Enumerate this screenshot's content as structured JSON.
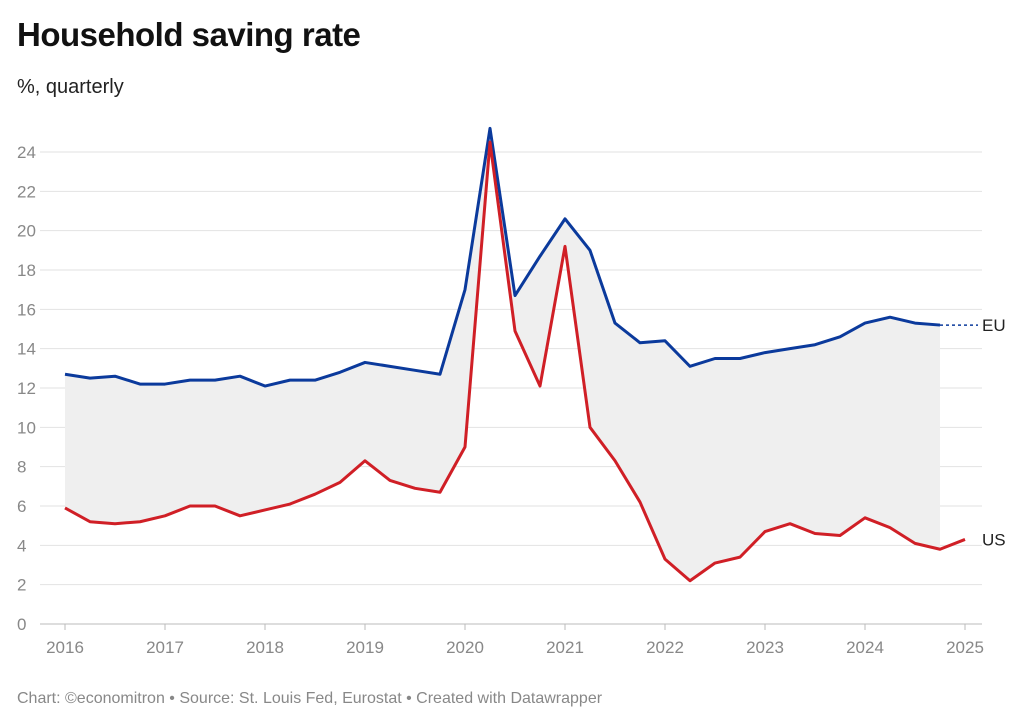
{
  "chart_data": {
    "type": "line",
    "title": "Household saving rate",
    "subtitle": "%, quarterly",
    "xlabel": "",
    "ylabel": "",
    "ylim": [
      0,
      25
    ],
    "xlim": [
      2016,
      2025
    ],
    "grid": true,
    "y_ticks": [
      "0",
      "2",
      "4",
      "6",
      "8",
      "10",
      "12",
      "14",
      "16",
      "18",
      "20",
      "22",
      "24"
    ],
    "x_ticks": [
      "2016",
      "2017",
      "2018",
      "2019",
      "2020",
      "2021",
      "2022",
      "2023",
      "2024",
      "2025"
    ],
    "x_start": 2016,
    "x_step": 0.25,
    "series": [
      {
        "name": "EU",
        "color": "#0b3a9c",
        "values": [
          12.7,
          12.5,
          12.6,
          12.2,
          12.2,
          12.4,
          12.4,
          12.6,
          12.1,
          12.4,
          12.4,
          12.8,
          13.3,
          13.1,
          12.9,
          12.7,
          17.0,
          25.2,
          16.7,
          18.7,
          20.6,
          19.0,
          15.3,
          14.3,
          14.4,
          13.1,
          13.5,
          13.5,
          13.8,
          14.0,
          14.2,
          14.6,
          15.3,
          15.6,
          15.3,
          15.2
        ]
      },
      {
        "name": "US",
        "color": "#d01f26",
        "values": [
          5.9,
          5.2,
          5.1,
          5.2,
          5.5,
          6.0,
          6.0,
          5.5,
          5.8,
          6.1,
          6.6,
          7.2,
          8.3,
          7.3,
          6.9,
          6.7,
          9.0,
          24.5,
          14.9,
          12.1,
          19.2,
          10.0,
          8.3,
          6.2,
          3.3,
          2.2,
          3.1,
          3.4,
          4.7,
          5.1,
          4.6,
          4.5,
          5.4,
          4.9,
          4.1,
          3.8,
          4.3
        ]
      }
    ],
    "fill_between_color": "#efefef"
  },
  "footer": "Chart: ©economitron • Source: St. Louis Fed, Eurostat • Created with Datawrapper"
}
